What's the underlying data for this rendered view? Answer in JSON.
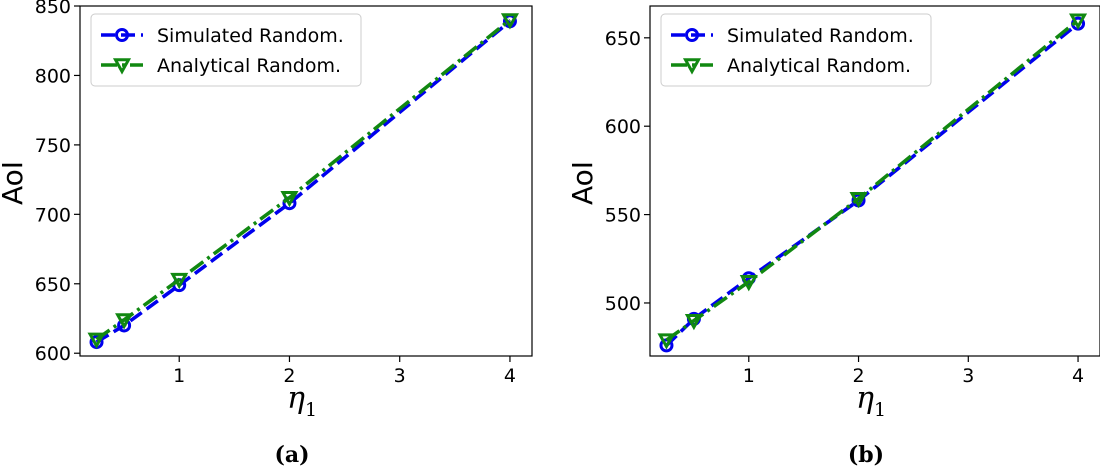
{
  "figure": {
    "panel_labels": [
      "(a)",
      "(b)"
    ],
    "colors": {
      "simulated": "#0000ee",
      "analytical": "#118811"
    }
  },
  "chart_data": [
    {
      "type": "line",
      "panel": "(a)",
      "xlabel": "η",
      "xlabel_subscript": "1",
      "ylabel": "AoI",
      "xlim": [
        0.1,
        4.2
      ],
      "ylim": [
        598,
        850
      ],
      "xticks": [
        1,
        2,
        3,
        4
      ],
      "yticks": [
        600,
        650,
        700,
        750,
        800,
        850
      ],
      "legend_position": "upper-left",
      "grid": false,
      "x": [
        0.25,
        0.5,
        1,
        2,
        4
      ],
      "series": [
        {
          "name": "Simulated Random.",
          "marker": "circle",
          "linestyle": "dashed",
          "values": [
            608,
            620,
            649,
            708,
            839
          ]
        },
        {
          "name": "Analytical Random.",
          "marker": "triangle-down",
          "linestyle": "dash-dot",
          "values": [
            610,
            624,
            653,
            712,
            840
          ]
        }
      ]
    },
    {
      "type": "line",
      "panel": "(b)",
      "xlabel": "η",
      "xlabel_subscript": "1",
      "ylabel": "AoI",
      "xlim": [
        0.1,
        4.2
      ],
      "ylim": [
        470,
        668
      ],
      "xticks": [
        1,
        2,
        3,
        4
      ],
      "yticks": [
        500,
        550,
        600,
        650
      ],
      "legend_position": "upper-left",
      "grid": false,
      "x": [
        0.25,
        0.5,
        1,
        2,
        4
      ],
      "series": [
        {
          "name": "Simulated Random.",
          "marker": "circle",
          "linestyle": "dashed",
          "values": [
            476,
            491,
            514,
            558,
            658
          ]
        },
        {
          "name": "Analytical Random.",
          "marker": "triangle-down",
          "linestyle": "dash-dot",
          "values": [
            479,
            490,
            512,
            559,
            660
          ]
        }
      ]
    }
  ]
}
